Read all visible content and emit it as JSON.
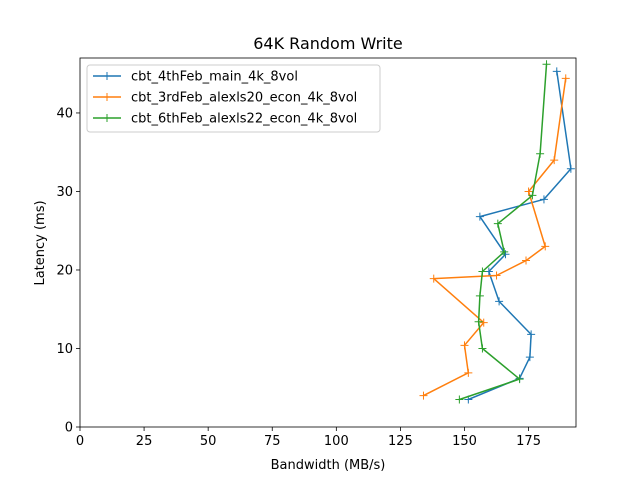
{
  "chart_data": {
    "type": "line",
    "title": "64K  Random Write",
    "xlabel": "Bandwidth (MB/s)",
    "ylabel": "Latency (ms)",
    "xlim": [
      0,
      193.5
    ],
    "ylim": [
      0,
      47.0
    ],
    "xticks": [
      0,
      25,
      50,
      75,
      100,
      125,
      150,
      175
    ],
    "yticks": [
      0,
      10,
      20,
      30,
      40
    ],
    "grid": false,
    "legend_position": "top-left",
    "series": [
      {
        "name": "cbt_4thFeb_main_4k_8vol",
        "color": "#1f77b4",
        "points": [
          {
            "x": 151.5,
            "y": 3.5
          },
          {
            "x": 171.5,
            "y": 6.2
          },
          {
            "x": 175.5,
            "y": 8.9
          },
          {
            "x": 176.0,
            "y": 11.8
          },
          {
            "x": 163.5,
            "y": 16.0
          },
          {
            "x": 159.5,
            "y": 19.8
          },
          {
            "x": 166.0,
            "y": 22.0
          },
          {
            "x": 156.0,
            "y": 26.8
          },
          {
            "x": 181.0,
            "y": 29.0
          },
          {
            "x": 191.5,
            "y": 32.9
          },
          {
            "x": 186.0,
            "y": 45.3
          }
        ]
      },
      {
        "name": "cbt_3rdFeb_alexls20_econ_4k_8vol",
        "color": "#ff7f0e",
        "points": [
          {
            "x": 134.0,
            "y": 4.0
          },
          {
            "x": 151.5,
            "y": 6.9
          },
          {
            "x": 150.0,
            "y": 10.4
          },
          {
            "x": 157.5,
            "y": 13.3
          },
          {
            "x": 138.0,
            "y": 18.9
          },
          {
            "x": 162.5,
            "y": 19.3
          },
          {
            "x": 174.0,
            "y": 21.2
          },
          {
            "x": 181.5,
            "y": 23.0
          },
          {
            "x": 175.0,
            "y": 30.0
          },
          {
            "x": 185.0,
            "y": 34.0
          },
          {
            "x": 189.5,
            "y": 44.4
          }
        ]
      },
      {
        "name": "cbt_6thFeb_alexls22_econ_4k_8vol",
        "color": "#2ca02c",
        "points": [
          {
            "x": 148.0,
            "y": 3.5
          },
          {
            "x": 171.5,
            "y": 6.1
          },
          {
            "x": 157.0,
            "y": 10.0
          },
          {
            "x": 155.5,
            "y": 13.4
          },
          {
            "x": 156.0,
            "y": 16.7
          },
          {
            "x": 157.0,
            "y": 19.8
          },
          {
            "x": 165.5,
            "y": 22.3
          },
          {
            "x": 163.0,
            "y": 25.9
          },
          {
            "x": 176.5,
            "y": 29.5
          },
          {
            "x": 179.5,
            "y": 34.8
          },
          {
            "x": 182.0,
            "y": 46.2
          }
        ]
      }
    ]
  }
}
